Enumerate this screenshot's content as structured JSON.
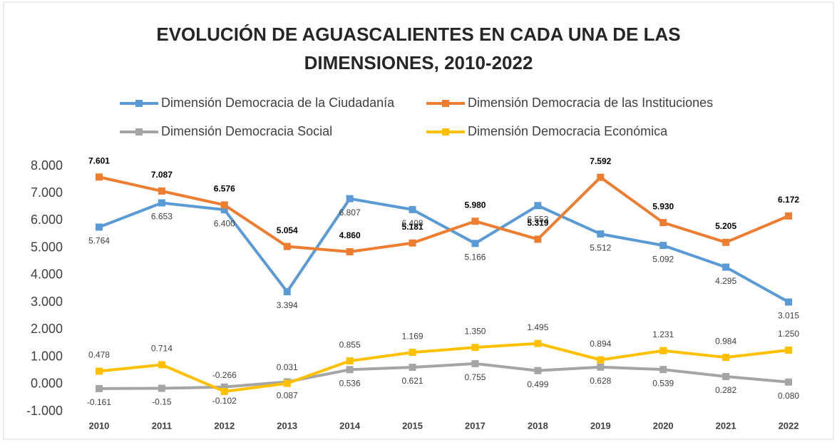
{
  "chart_data": {
    "type": "line",
    "title": [
      "EVOLUCIÓN DE AGUASCALIENTES EN CADA UNA DE LAS",
      "DIMENSIONES, 2010-2022"
    ],
    "categories": [
      "2010",
      "2011",
      "2012",
      "2013",
      "2014",
      "2015",
      "2017",
      "2018",
      "2019",
      "2020",
      "2021",
      "2022"
    ],
    "ylim": [
      -1,
      8
    ],
    "yticks": [
      {
        "value": -1,
        "label": "-1.000"
      },
      {
        "value": 0,
        "label": "0.000"
      },
      {
        "value": 1,
        "label": "1.000"
      },
      {
        "value": 2,
        "label": "2.000"
      },
      {
        "value": 3,
        "label": "3.000"
      },
      {
        "value": 4,
        "label": "4.000"
      },
      {
        "value": 5,
        "label": "5.000"
      },
      {
        "value": 6,
        "label": "6.000"
      },
      {
        "value": 7,
        "label": "7.000"
      },
      {
        "value": 8,
        "label": "8.000"
      }
    ],
    "grid": false,
    "legend": "top",
    "series": [
      {
        "name": "Dimensión Democracia de la Ciudadanía",
        "color": "#5b9bd5",
        "values": [
          5.764,
          6.653,
          6.4,
          3.394,
          6.807,
          6.408,
          5.166,
          6.553,
          5.512,
          5.092,
          4.295,
          3.015
        ],
        "value_labels": [
          "5.764",
          "6.653",
          "6.400",
          "3.394",
          "6.807",
          "6.408",
          "5.166",
          "6.553",
          "5.512",
          "5.092",
          "4.295",
          "3.015"
        ]
      },
      {
        "name": "Dimensión Democracia de las Instituciones",
        "color": "#ed7d31",
        "values": [
          7.601,
          7.087,
          6.576,
          5.054,
          4.86,
          5.181,
          5.98,
          5.319,
          7.592,
          5.93,
          5.205,
          6.172
        ],
        "value_labels": [
          "7.601",
          "7.087",
          "6.576",
          "5.054",
          "4.860",
          "5.181",
          "5.980",
          "5.319",
          "7.592",
          "5.930",
          "5.205",
          "6.172"
        ]
      },
      {
        "name": "Dimensión Democracia Social",
        "color": "#a5a5a5",
        "values": [
          -0.161,
          -0.15,
          -0.102,
          0.087,
          0.536,
          0.621,
          0.755,
          0.499,
          0.628,
          0.539,
          0.282,
          0.08
        ],
        "value_labels": [
          "-0.161",
          "-0.15",
          "-0.102",
          "0.087",
          "0.536",
          "0.621",
          "0.755",
          "0.499",
          "0.628",
          "0.539",
          "0.282",
          "0.080"
        ]
      },
      {
        "name": "Dimensión Democracia Económica",
        "color": "#ffc000",
        "values": [
          0.478,
          0.714,
          -0.266,
          0.031,
          0.855,
          1.169,
          1.35,
          1.495,
          0.894,
          1.231,
          0.984,
          1.25
        ],
        "value_labels": [
          "0.478",
          "0.714",
          "-0.266",
          "0.031",
          "0.855",
          "1.169",
          "1.350",
          "1.495",
          "0.894",
          "1.231",
          "0.984",
          "1.250"
        ]
      }
    ]
  }
}
